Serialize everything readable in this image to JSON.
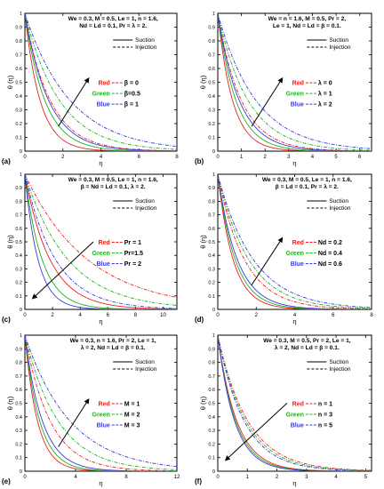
{
  "chart_data": [
    {
      "type": "line",
      "panel_label": "(a)",
      "title": [
        "We = 0.3, M = 0.5, Le = 1, n = 1.6,",
        "Nd = Ld = 0.1, Pr = λ = 2."
      ],
      "xlabel": "η",
      "ylabel": "θ (η)",
      "xlim": [
        0,
        8
      ],
      "ylim": [
        0,
        1
      ],
      "xticks": [
        0,
        2,
        4,
        6,
        8
      ],
      "yticks": [
        0,
        0.1,
        0.2,
        0.3,
        0.4,
        0.5,
        0.6,
        0.7,
        0.8,
        0.9,
        1
      ],
      "legend": {
        "solid": "Suction",
        "dashed": "Injection",
        "placement": "top-right"
      },
      "params": [
        {
          "color_name": "Red",
          "label": "β = 0",
          "color": "#e8201c"
        },
        {
          "color_name": "Green",
          "label": "β=0.5",
          "color": "#1fb01f"
        },
        {
          "color_name": "Blue",
          "label": "β = 1",
          "color": "#3a3ad8"
        }
      ],
      "suction_decay": [
        1.25,
        0.95,
        0.8
      ],
      "injection_decay": [
        0.75,
        0.55,
        0.42
      ],
      "arrow": "increasing"
    },
    {
      "type": "line",
      "panel_label": "(b)",
      "title": [
        "We = n = 1.6, M = 0.5, Pr = 2,",
        "Le = 1, Nd = Ld = β = 0.1."
      ],
      "xlabel": "η",
      "ylabel": "θ (η)",
      "xlim": [
        0,
        6.5
      ],
      "ylim": [
        0,
        1
      ],
      "xticks": [
        0,
        1,
        2,
        3,
        4,
        5,
        6
      ],
      "yticks": [
        0,
        0.1,
        0.2,
        0.3,
        0.4,
        0.5,
        0.6,
        0.7,
        0.8,
        0.9,
        1
      ],
      "legend": {
        "solid": "Suction",
        "dashed": "Injection",
        "placement": "top-right"
      },
      "params": [
        {
          "color_name": "Red",
          "label": "λ = 0",
          "color": "#e8201c"
        },
        {
          "color_name": "Green",
          "label": "λ = 1",
          "color": "#1fb01f"
        },
        {
          "color_name": "Blue",
          "label": "λ = 2",
          "color": "#3a3ad8"
        }
      ],
      "suction_decay": [
        1.6,
        1.3,
        1.1
      ],
      "injection_decay": [
        1.0,
        0.78,
        0.62
      ],
      "arrow": "increasing"
    },
    {
      "type": "line",
      "panel_label": "(c)",
      "title": [
        "We = 0.3, M = 0.5, Le = 1, n = 1.6,",
        "β = Nd = Ld = 0.1, λ = 2."
      ],
      "xlabel": "η",
      "ylabel": "θ (η)",
      "xlim": [
        0,
        11
      ],
      "ylim": [
        0,
        1
      ],
      "xticks": [
        0,
        2,
        4,
        6,
        8,
        10
      ],
      "yticks": [
        0,
        0.1,
        0.2,
        0.3,
        0.4,
        0.5,
        0.6,
        0.7,
        0.8,
        0.9,
        1
      ],
      "legend": {
        "solid": "Suction",
        "dashed": "Injection",
        "placement": "top-right"
      },
      "params": [
        {
          "color_name": "Red",
          "label": "Pr = 1",
          "color": "#e8201c"
        },
        {
          "color_name": "Green",
          "label": "Pr=1.5",
          "color": "#1fb01f"
        },
        {
          "color_name": "Blue",
          "label": "Pr = 2",
          "color": "#3a3ad8"
        }
      ],
      "suction_decay": [
        0.55,
        0.8,
        1.05
      ],
      "injection_decay": [
        0.22,
        0.32,
        0.45
      ],
      "arrow": "decreasing"
    },
    {
      "type": "line",
      "panel_label": "(d)",
      "title": [
        "We = 0.3, M = 0.5, Le = 1, n = 1.6,",
        "β = Ld = 0.1, Pr = λ = 2."
      ],
      "xlabel": "η",
      "ylabel": "θ (η)",
      "xlim": [
        0,
        8
      ],
      "ylim": [
        0,
        1
      ],
      "xticks": [
        0,
        2,
        4,
        6,
        8
      ],
      "yticks": [
        0,
        0.1,
        0.2,
        0.3,
        0.4,
        0.5,
        0.6,
        0.7,
        0.8,
        0.9,
        1
      ],
      "legend": {
        "solid": "Suction",
        "dashed": "Injection",
        "placement": "top-right"
      },
      "params": [
        {
          "color_name": "Red",
          "label": "Nd = 0.2",
          "color": "#e8201c"
        },
        {
          "color_name": "Green",
          "label": "Nd = 0.4",
          "color": "#1fb01f"
        },
        {
          "color_name": "Blue",
          "label": "Nd = 0.6",
          "color": "#3a3ad8"
        }
      ],
      "suction_decay": [
        1.25,
        1.1,
        0.98
      ],
      "injection_decay": [
        0.72,
        0.62,
        0.54
      ],
      "arrow": "increasing"
    },
    {
      "type": "line",
      "panel_label": "(e)",
      "title": [
        "We = 0.3, n = 1.6, Pr = 2, Le = 1,",
        "λ = 2, Nd = Ld = β = 0.1."
      ],
      "xlabel": "η",
      "ylabel": "θ (η)",
      "xlim": [
        0,
        12
      ],
      "ylim": [
        0,
        1
      ],
      "xticks": [
        0,
        4,
        8,
        12
      ],
      "yticks": [
        0,
        0.1,
        0.2,
        0.3,
        0.4,
        0.5,
        0.6,
        0.7,
        0.8,
        0.9,
        1
      ],
      "legend": {
        "solid": "Suction",
        "dashed": "Injection",
        "placement": "top-right"
      },
      "params": [
        {
          "color_name": "Red",
          "label": "M = 1",
          "color": "#e8201c"
        },
        {
          "color_name": "Green",
          "label": "M = 2",
          "color": "#1fb01f"
        },
        {
          "color_name": "Blue",
          "label": "M = 3",
          "color": "#3a3ad8"
        }
      ],
      "suction_decay": [
        1.0,
        0.85,
        0.72
      ],
      "injection_decay": [
        0.5,
        0.38,
        0.28
      ],
      "arrow": "increasing"
    },
    {
      "type": "line",
      "panel_label": "(f)",
      "title": [
        "We = 0.3, M = 0.5, Pr = 2, Le = 1,",
        "λ = 2, Nd = Ld = β = 0.1."
      ],
      "xlabel": "η",
      "ylabel": "θ (η)",
      "xlim": [
        0,
        5.2
      ],
      "ylim": [
        0,
        1
      ],
      "xticks": [
        0,
        1,
        2,
        3,
        4,
        5
      ],
      "yticks": [
        0,
        0.1,
        0.2,
        0.3,
        0.4,
        0.5,
        0.6,
        0.7,
        0.8,
        0.9,
        1
      ],
      "legend": {
        "solid": "Suction",
        "dashed": "Injection",
        "placement": "top-right"
      },
      "params": [
        {
          "color_name": "Red",
          "label": "n = 1",
          "color": "#e8201c"
        },
        {
          "color_name": "Green",
          "label": "n = 3",
          "color": "#1fb01f"
        },
        {
          "color_name": "Blue",
          "label": "n = 5",
          "color": "#3a3ad8"
        }
      ],
      "suction_decay": [
        1.55,
        1.65,
        1.75
      ],
      "injection_decay": [
        0.98,
        1.05,
        1.12
      ],
      "arrow": "decreasing"
    }
  ]
}
